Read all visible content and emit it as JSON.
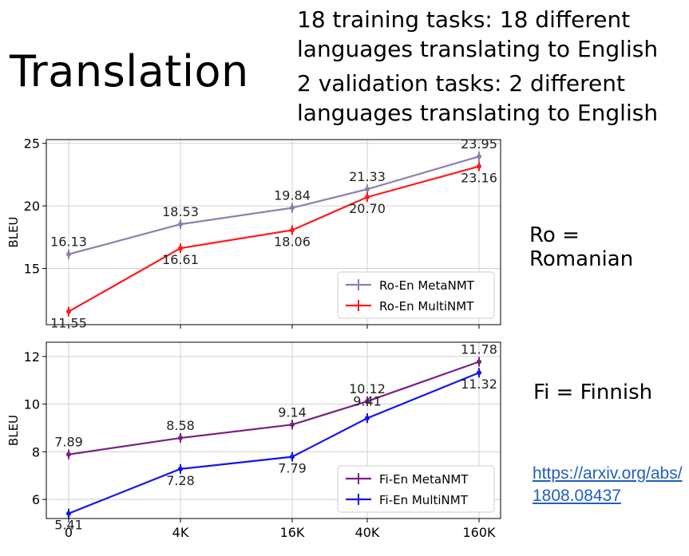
{
  "slide": {
    "title": "Translation",
    "desc_train": "18 training tasks: 18 different languages translating to English",
    "desc_valid": "2 validation tasks: 2 different languages translating to English",
    "ro_label": "Ro = Romanian",
    "fi_label": "Fi = Finnish",
    "link": "https://arxiv.org/abs/1808.08437"
  },
  "chart_data": [
    {
      "type": "line",
      "ylabel": "BLEU",
      "ylim": [
        10.5,
        25.3
      ],
      "yticks": [
        15,
        20,
        25
      ],
      "categories": [
        "0",
        "4K",
        "16K",
        "40K",
        "160K"
      ],
      "legend": "bottom-right",
      "grid": true,
      "series": [
        {
          "name": "Ro-En MetaNMT",
          "color": "#8c7fb0",
          "values": [
            16.13,
            18.53,
            19.84,
            21.33,
            23.95
          ],
          "labels": [
            "16.13",
            "18.53",
            "19.84",
            "21.33",
            "23.95"
          ]
        },
        {
          "name": "Ro-En MultiNMT",
          "color": "#ff1a1a",
          "values": [
            11.55,
            16.61,
            18.06,
            20.7,
            23.16
          ],
          "labels": [
            "11.55",
            "16.61",
            "18.06",
            "20.70",
            "23.16"
          ]
        }
      ]
    },
    {
      "type": "line",
      "ylabel": "BLEU",
      "ylim": [
        5.2,
        12.6
      ],
      "yticks": [
        6,
        8,
        10,
        12
      ],
      "categories": [
        "0",
        "4K",
        "16K",
        "40K",
        "160K"
      ],
      "legend": "bottom-right",
      "grid": true,
      "series": [
        {
          "name": "Fi-En MetaNMT",
          "color": "#7b1f86",
          "values": [
            7.89,
            8.58,
            9.14,
            10.12,
            11.78
          ],
          "labels": [
            "7.89",
            "8.58",
            "9.14",
            "10.12",
            "11.78"
          ]
        },
        {
          "name": "Fi-En MultiNMT",
          "color": "#1414ee",
          "values": [
            5.41,
            7.28,
            7.79,
            9.41,
            11.32
          ],
          "labels": [
            "5.41",
            "7.28",
            "7.79",
            "9.41",
            "11.32"
          ]
        }
      ]
    }
  ]
}
